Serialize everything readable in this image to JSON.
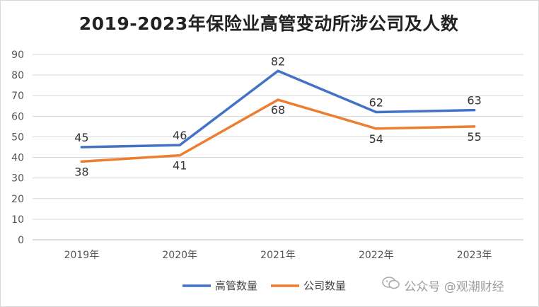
{
  "chart_data": {
    "type": "line",
    "title": "2019-2023年保险业高管变动所涉公司及人数",
    "categories": [
      "2019年",
      "2020年",
      "2021年",
      "2022年",
      "2023年"
    ],
    "series": [
      {
        "name": "高管数量",
        "values": [
          45,
          46,
          82,
          62,
          63
        ],
        "color": "#4472c4"
      },
      {
        "name": "公司数量",
        "values": [
          38,
          41,
          68,
          54,
          55
        ],
        "color": "#ed7d31"
      }
    ],
    "ylim": [
      0,
      90
    ],
    "yticks": [
      0,
      10,
      20,
      30,
      40,
      50,
      60,
      70,
      80,
      90
    ],
    "grid": true,
    "legend": "bottom"
  },
  "watermark": "公众号 @观潮财经"
}
